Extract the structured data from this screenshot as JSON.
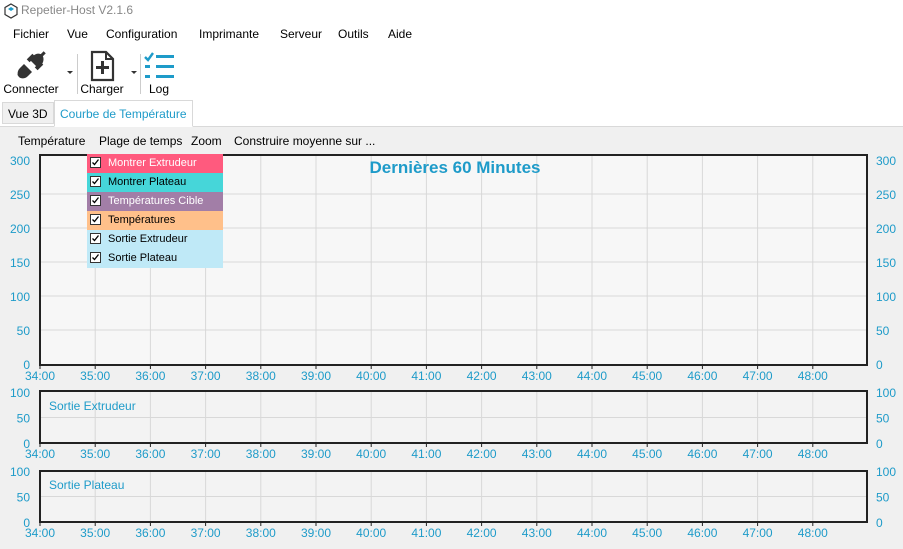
{
  "window": {
    "title": "Repetier-Host V2.1.6"
  },
  "menu": [
    "Fichier",
    "Vue",
    "Configuration",
    "Imprimante",
    "Serveur",
    "Outils",
    "Aide"
  ],
  "toolbar": {
    "connect_label": "Connecter",
    "load_label": "Charger",
    "log_label": "Log"
  },
  "tabs": [
    {
      "label": "Vue 3D",
      "active": false
    },
    {
      "label": "Courbe de Température",
      "active": true
    }
  ],
  "temp_menu": [
    "Température",
    "Plage de temps",
    "Zoom",
    "Construire moyenne sur ..."
  ],
  "legend": [
    {
      "label": "Montrer Extrudeur",
      "color": "#ff5a7e",
      "text_color": "#ffffff",
      "checked": true
    },
    {
      "label": "Montrer Plateau",
      "color": "#46d6d9",
      "text_color": "#000000",
      "checked": true
    },
    {
      "label": "Températures Cible",
      "color": "#a27ea7",
      "text_color": "#ffffff",
      "checked": true
    },
    {
      "label": "Températures",
      "color": "#ffc08a",
      "text_color": "#000000",
      "checked": true
    },
    {
      "label": "Sortie Extrudeur",
      "color": "#bfe9f7",
      "text_color": "#000000",
      "checked": true
    },
    {
      "label": "Sortie Plateau",
      "color": "#bfe9f7",
      "text_color": "#000000",
      "checked": true
    }
  ],
  "colors": {
    "axis_text": "#1e9bc9",
    "title": "#1e9bc9",
    "grid": "#d8d8d8",
    "frame": "#222222"
  },
  "chart_data": [
    {
      "type": "line",
      "title": "Dernières 60 Minutes",
      "y_ticks": [
        "300",
        "250",
        "200",
        "150",
        "100",
        "50",
        "0"
      ],
      "ylim": [
        0,
        300
      ],
      "x_ticks": [
        "34:00",
        "35:00",
        "36:00",
        "37:00",
        "38:00",
        "39:00",
        "40:00",
        "41:00",
        "42:00",
        "43:00",
        "44:00",
        "45:00",
        "46:00",
        "47:00",
        "48:00"
      ],
      "series": [],
      "grid": true
    },
    {
      "type": "line",
      "title": "Sortie Extrudeur",
      "y_ticks": [
        "100",
        "50",
        "0"
      ],
      "ylim": [
        0,
        100
      ],
      "x_ticks": [
        "34:00",
        "35:00",
        "36:00",
        "37:00",
        "38:00",
        "39:00",
        "40:00",
        "41:00",
        "42:00",
        "43:00",
        "44:00",
        "45:00",
        "46:00",
        "47:00",
        "48:00"
      ],
      "series": [],
      "grid": true
    },
    {
      "type": "line",
      "title": "Sortie Plateau",
      "y_ticks": [
        "100",
        "50",
        "0"
      ],
      "ylim": [
        0,
        100
      ],
      "x_ticks": [
        "34:00",
        "35:00",
        "36:00",
        "37:00",
        "38:00",
        "39:00",
        "40:00",
        "41:00",
        "42:00",
        "43:00",
        "44:00",
        "45:00",
        "46:00",
        "47:00",
        "48:00"
      ],
      "series": [],
      "grid": true
    }
  ]
}
